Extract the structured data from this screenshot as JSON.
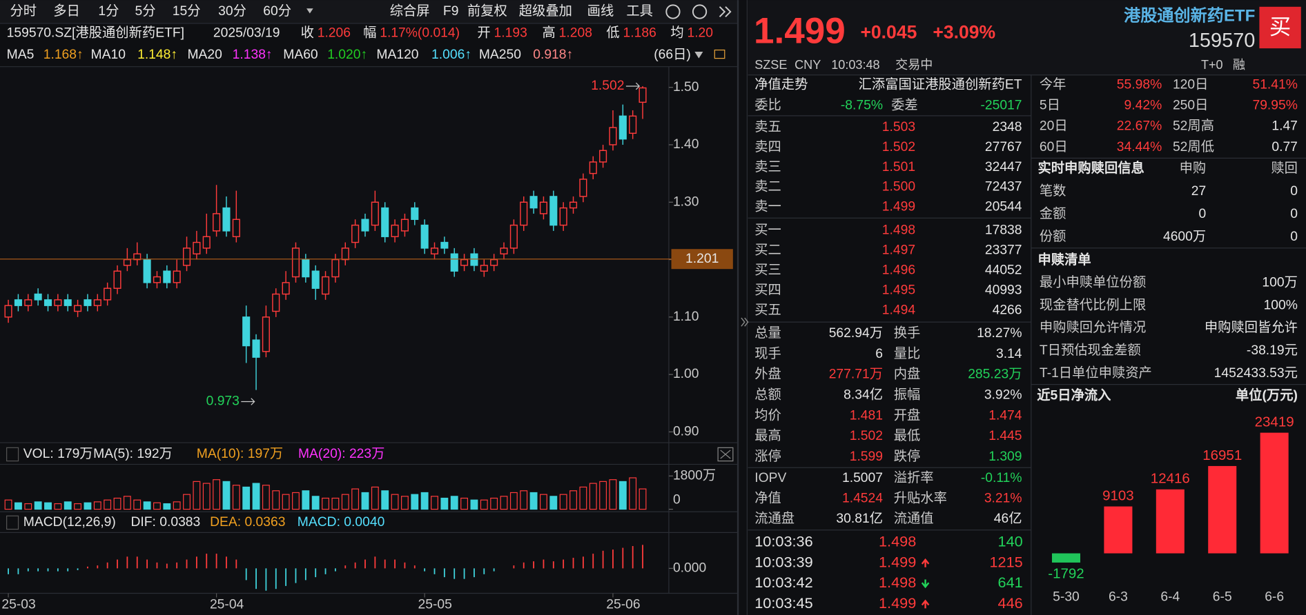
{
  "toolbar": {
    "periods": [
      "分时",
      "多日",
      "1分",
      "5分",
      "15分",
      "30分",
      "60分"
    ],
    "tools": [
      "综合屏",
      "F9",
      "前复权",
      "超级叠加",
      "画线",
      "工具"
    ]
  },
  "info": {
    "code": "159570.SZ[港股通创新药ETF]",
    "date": "2025/03/19",
    "items": [
      [
        "收",
        "1.206"
      ],
      [
        "幅",
        "1.17%(0.014)"
      ],
      [
        "开",
        "1.193"
      ],
      [
        "高",
        "1.208"
      ],
      [
        "低",
        "1.186"
      ],
      [
        "均",
        "1.20"
      ]
    ]
  },
  "ma": {
    "items": [
      [
        "MA5",
        "1.168↑"
      ],
      [
        "MA10",
        "1.148↑"
      ],
      [
        "MA20",
        "1.138↑"
      ],
      [
        "MA60",
        "1.020↑"
      ],
      [
        "MA120",
        "1.006↑"
      ],
      [
        "MA250",
        "0.918↑"
      ]
    ],
    "period": "(66日)"
  },
  "vol_legend": [
    "VOL: 179万",
    "MA(5): 192万",
    "MA(10): 197万",
    "MA(20): 223万"
  ],
  "macd_legend": [
    "MACD(12,26,9)",
    "DIF: 0.0383",
    "DEA: 0.0363",
    "MACD: 0.0040"
  ],
  "quote": {
    "price": "1.499",
    "change": "+0.045",
    "change_pct": "+3.09%",
    "name": "港股通创新药ETF",
    "code": "159570",
    "buy": "买",
    "exchange": "SZSE",
    "currency": "CNY",
    "time": "10:03:48",
    "status": "交易中",
    "tplus": "T+0",
    "margin": "融",
    "nav_label": "净值走势",
    "fund_name": "汇添富国证港股通创新药ET",
    "ratio": [
      "委比",
      "-8.75%",
      "委差",
      "-25017"
    ],
    "asks": [
      [
        "卖五",
        "1.503",
        "2348"
      ],
      [
        "卖四",
        "1.502",
        "27767"
      ],
      [
        "卖三",
        "1.501",
        "32447"
      ],
      [
        "卖二",
        "1.500",
        "72437"
      ],
      [
        "卖一",
        "1.499",
        "20544"
      ]
    ],
    "bids": [
      [
        "买一",
        "1.498",
        "17838"
      ],
      [
        "买二",
        "1.497",
        "23377"
      ],
      [
        "买三",
        "1.496",
        "44052"
      ],
      [
        "买四",
        "1.495",
        "40993"
      ],
      [
        "买五",
        "1.494",
        "4266"
      ]
    ],
    "stats": [
      [
        "总量",
        "562.94万",
        "换手",
        "18.27%"
      ],
      [
        "现手",
        "6",
        "量比",
        "3.14"
      ],
      [
        "外盘",
        "277.71万",
        "内盘",
        "285.23万"
      ],
      [
        "总额",
        "8.34亿",
        "振幅",
        "3.92%"
      ],
      [
        "均价",
        "1.481",
        "开盘",
        "1.474"
      ],
      [
        "最高",
        "1.502",
        "最低",
        "1.445"
      ],
      [
        "涨停",
        "1.599",
        "跌停",
        "1.309"
      ]
    ],
    "iopv": [
      [
        "IOPV",
        "1.5007",
        "溢折率",
        "-0.11%"
      ],
      [
        "净值",
        "1.4524",
        "升贴水率",
        "3.21%"
      ],
      [
        "流通盘",
        "30.81亿",
        "流通值",
        "46亿"
      ]
    ],
    "ticks": [
      [
        "10:03:36",
        "1.498",
        "140"
      ],
      [
        "10:03:39",
        "1.499",
        "1215"
      ],
      [
        "10:03:42",
        "1.498",
        "641"
      ],
      [
        "10:03:45",
        "1.499",
        "446"
      ]
    ],
    "perf": [
      [
        "今年",
        "55.98%",
        "120日",
        "51.41%"
      ],
      [
        "5日",
        "9.42%",
        "250日",
        "79.95%"
      ],
      [
        "20日",
        "22.67%",
        "52周高",
        "1.47"
      ],
      [
        "60日",
        "34.44%",
        "52周低",
        "0.77"
      ]
    ],
    "realtime": {
      "title": "实时申购赎回信息",
      "cols": [
        "申购",
        "赎回"
      ],
      "rows": [
        [
          "笔数",
          "27",
          "0"
        ],
        [
          "金额",
          "0",
          "0"
        ],
        [
          "份额",
          "4600万",
          "0"
        ]
      ]
    },
    "list": {
      "title": "申赎清单",
      "rows": [
        [
          "最小申赎单位份额",
          "100万"
        ],
        [
          "现金替代比例上限",
          "100%"
        ],
        [
          "申购赎回允许情况",
          "申购赎回皆允许"
        ],
        [
          "T日预估现金差额",
          "-38.19元"
        ],
        [
          "T-1日单位申赎资产",
          "1452433.53元"
        ]
      ]
    }
  },
  "chart_data": [
    {
      "type": "candlestick",
      "categories": [
        "25-03",
        null,
        null,
        null,
        null,
        null,
        null,
        null,
        null,
        null,
        null,
        null,
        null,
        null,
        null,
        null,
        null,
        null,
        null,
        null,
        null,
        "25-04",
        null,
        null,
        null,
        null,
        null,
        null,
        null,
        null,
        null,
        null,
        null,
        null,
        null,
        null,
        null,
        null,
        null,
        null,
        null,
        null,
        "25-05",
        null,
        null,
        null,
        null,
        null,
        null,
        null,
        null,
        null,
        null,
        null,
        null,
        null,
        null,
        null,
        null,
        null,
        null,
        "25-06",
        null,
        null,
        null
      ],
      "open": [
        1.1,
        1.13,
        1.12,
        1.14,
        1.13,
        1.12,
        1.13,
        1.11,
        1.13,
        1.12,
        1.13,
        1.15,
        1.19,
        1.2,
        1.2,
        1.16,
        1.18,
        1.16,
        1.19,
        1.21,
        1.22,
        1.25,
        1.29,
        1.24,
        1.1,
        1.06,
        1.04,
        1.11,
        1.14,
        1.17,
        1.2,
        1.18,
        1.14,
        1.17,
        1.2,
        1.23,
        1.27,
        1.26,
        1.29,
        1.24,
        1.25,
        1.29,
        1.26,
        1.21,
        1.23,
        1.21,
        1.19,
        1.21,
        1.18,
        1.19,
        1.21,
        1.22,
        1.26,
        1.31,
        1.28,
        1.31,
        1.26,
        1.29,
        1.31,
        1.35,
        1.37,
        1.4,
        1.45,
        1.42,
        1.474
      ],
      "high": [
        1.13,
        1.14,
        1.14,
        1.15,
        1.14,
        1.14,
        1.14,
        1.13,
        1.14,
        1.14,
        1.16,
        1.19,
        1.22,
        1.23,
        1.21,
        1.18,
        1.19,
        1.2,
        1.24,
        1.25,
        1.28,
        1.33,
        1.31,
        1.32,
        1.12,
        1.07,
        1.12,
        1.15,
        1.18,
        1.23,
        1.21,
        1.19,
        1.18,
        1.21,
        1.23,
        1.27,
        1.28,
        1.32,
        1.3,
        1.27,
        1.28,
        1.3,
        1.27,
        1.23,
        1.24,
        1.22,
        1.21,
        1.22,
        1.2,
        1.21,
        1.23,
        1.27,
        1.31,
        1.32,
        1.31,
        1.32,
        1.3,
        1.31,
        1.35,
        1.38,
        1.4,
        1.46,
        1.47,
        1.46,
        1.502
      ],
      "low": [
        1.09,
        1.11,
        1.11,
        1.12,
        1.11,
        1.11,
        1.11,
        1.1,
        1.11,
        1.11,
        1.12,
        1.14,
        1.18,
        1.19,
        1.15,
        1.15,
        1.15,
        1.15,
        1.18,
        1.2,
        1.21,
        1.24,
        1.24,
        1.23,
        1.02,
        0.973,
        1.03,
        1.1,
        1.13,
        1.16,
        1.16,
        1.13,
        1.13,
        1.16,
        1.19,
        1.22,
        1.24,
        1.25,
        1.23,
        1.23,
        1.24,
        1.26,
        1.21,
        1.2,
        1.21,
        1.17,
        1.18,
        1.18,
        1.17,
        1.18,
        1.2,
        1.21,
        1.25,
        1.28,
        1.27,
        1.25,
        1.25,
        1.28,
        1.3,
        1.34,
        1.36,
        1.39,
        1.4,
        1.41,
        1.445
      ],
      "close": [
        1.12,
        1.12,
        1.13,
        1.13,
        1.12,
        1.13,
        1.12,
        1.12,
        1.12,
        1.13,
        1.15,
        1.18,
        1.2,
        1.21,
        1.16,
        1.17,
        1.16,
        1.18,
        1.22,
        1.23,
        1.24,
        1.28,
        1.25,
        1.27,
        1.05,
        1.03,
        1.1,
        1.14,
        1.16,
        1.22,
        1.17,
        1.15,
        1.17,
        1.2,
        1.22,
        1.26,
        1.25,
        1.3,
        1.24,
        1.26,
        1.27,
        1.27,
        1.22,
        1.22,
        1.22,
        1.18,
        1.2,
        1.19,
        1.19,
        1.2,
        1.22,
        1.26,
        1.3,
        1.29,
        1.3,
        1.26,
        1.29,
        1.3,
        1.34,
        1.37,
        1.39,
        1.43,
        1.41,
        1.45,
        1.499
      ],
      "ylim": [
        0.887,
        1.536
      ],
      "yticks": [
        {
          "value": 0.9,
          "label": "0.90"
        },
        {
          "value": 1.0,
          "label": "1.00"
        },
        {
          "value": 1.1,
          "label": "1.10"
        },
        {
          "value": 1.2,
          "label": "1.20"
        },
        {
          "value": 1.3,
          "label": "1.30"
        },
        {
          "value": 1.4,
          "label": "1.40"
        },
        {
          "value": 1.5,
          "label": "1.50"
        }
      ],
      "crosshair": 1.201,
      "up_color": "#ff3b3b",
      "down_color": "#3fd3dc"
    },
    {
      "type": "volume",
      "values": [
        500,
        350,
        300,
        400,
        350,
        300,
        400,
        300,
        350,
        400,
        500,
        600,
        700,
        500,
        400,
        350,
        300,
        400,
        800,
        1500,
        1400,
        1600,
        1500,
        1300,
        1200,
        1400,
        1300,
        1000,
        800,
        900,
        1000,
        700,
        600,
        600,
        800,
        1100,
        900,
        1200,
        1000,
        800,
        700,
        800,
        900,
        700,
        600,
        700,
        600,
        500,
        500,
        600,
        700,
        900,
        1000,
        900,
        800,
        700,
        800,
        1000,
        1200,
        1400,
        1500,
        1600,
        1500,
        1700,
        1100
      ],
      "ylim": [
        0,
        2340
      ],
      "yticks": [
        0,
        {
          "value": 1800,
          "label": "1800万"
        }
      ]
    },
    {
      "type": "macd",
      "values": [
        -0.001,
        -0.001,
        -0.0005,
        -0.0005,
        -0.0005,
        -0.0005,
        -0.0005,
        -0.0003,
        0.0003,
        0.0005,
        0.001,
        0.0015,
        0.002,
        0.002,
        0.0015,
        0.001,
        0.0008,
        0.001,
        0.0015,
        0.002,
        0.0025,
        0.0025,
        0.002,
        0.0015,
        -0.002,
        -0.0035,
        -0.0038,
        -0.0035,
        -0.003,
        -0.0025,
        -0.002,
        -0.0015,
        -0.001,
        -0.0005,
        0.0005,
        0.001,
        0.0015,
        0.002,
        0.0015,
        0.0015,
        0.001,
        0.0005,
        -0.0005,
        -0.001,
        -0.0015,
        -0.0018,
        -0.0018,
        -0.0015,
        -0.001,
        -0.0005,
        0,
        0.0005,
        0.001,
        0.0012,
        0.0015,
        0.0012,
        0.0015,
        0.0018,
        0.002,
        0.0025,
        0.003,
        0.0032,
        0.0035,
        0.0038,
        0.004
      ],
      "ylim": [
        -0.0041,
        0.0061
      ],
      "yticks": [
        {
          "value": 0,
          "label": "0.000"
        }
      ],
      "up_color": "#ff3b3b",
      "down_color": "#3fd3dc"
    },
    {
      "type": "bar",
      "title": "近5日净流入",
      "unit": "单位(万元)",
      "categories": [
        "5-30",
        "6-3",
        "6-4",
        "6-5",
        "6-6"
      ],
      "values": [
        -1792,
        9103,
        12416,
        16951,
        23419
      ],
      "up_color": "#ff2a36",
      "down_color": "#20c45a"
    }
  ]
}
